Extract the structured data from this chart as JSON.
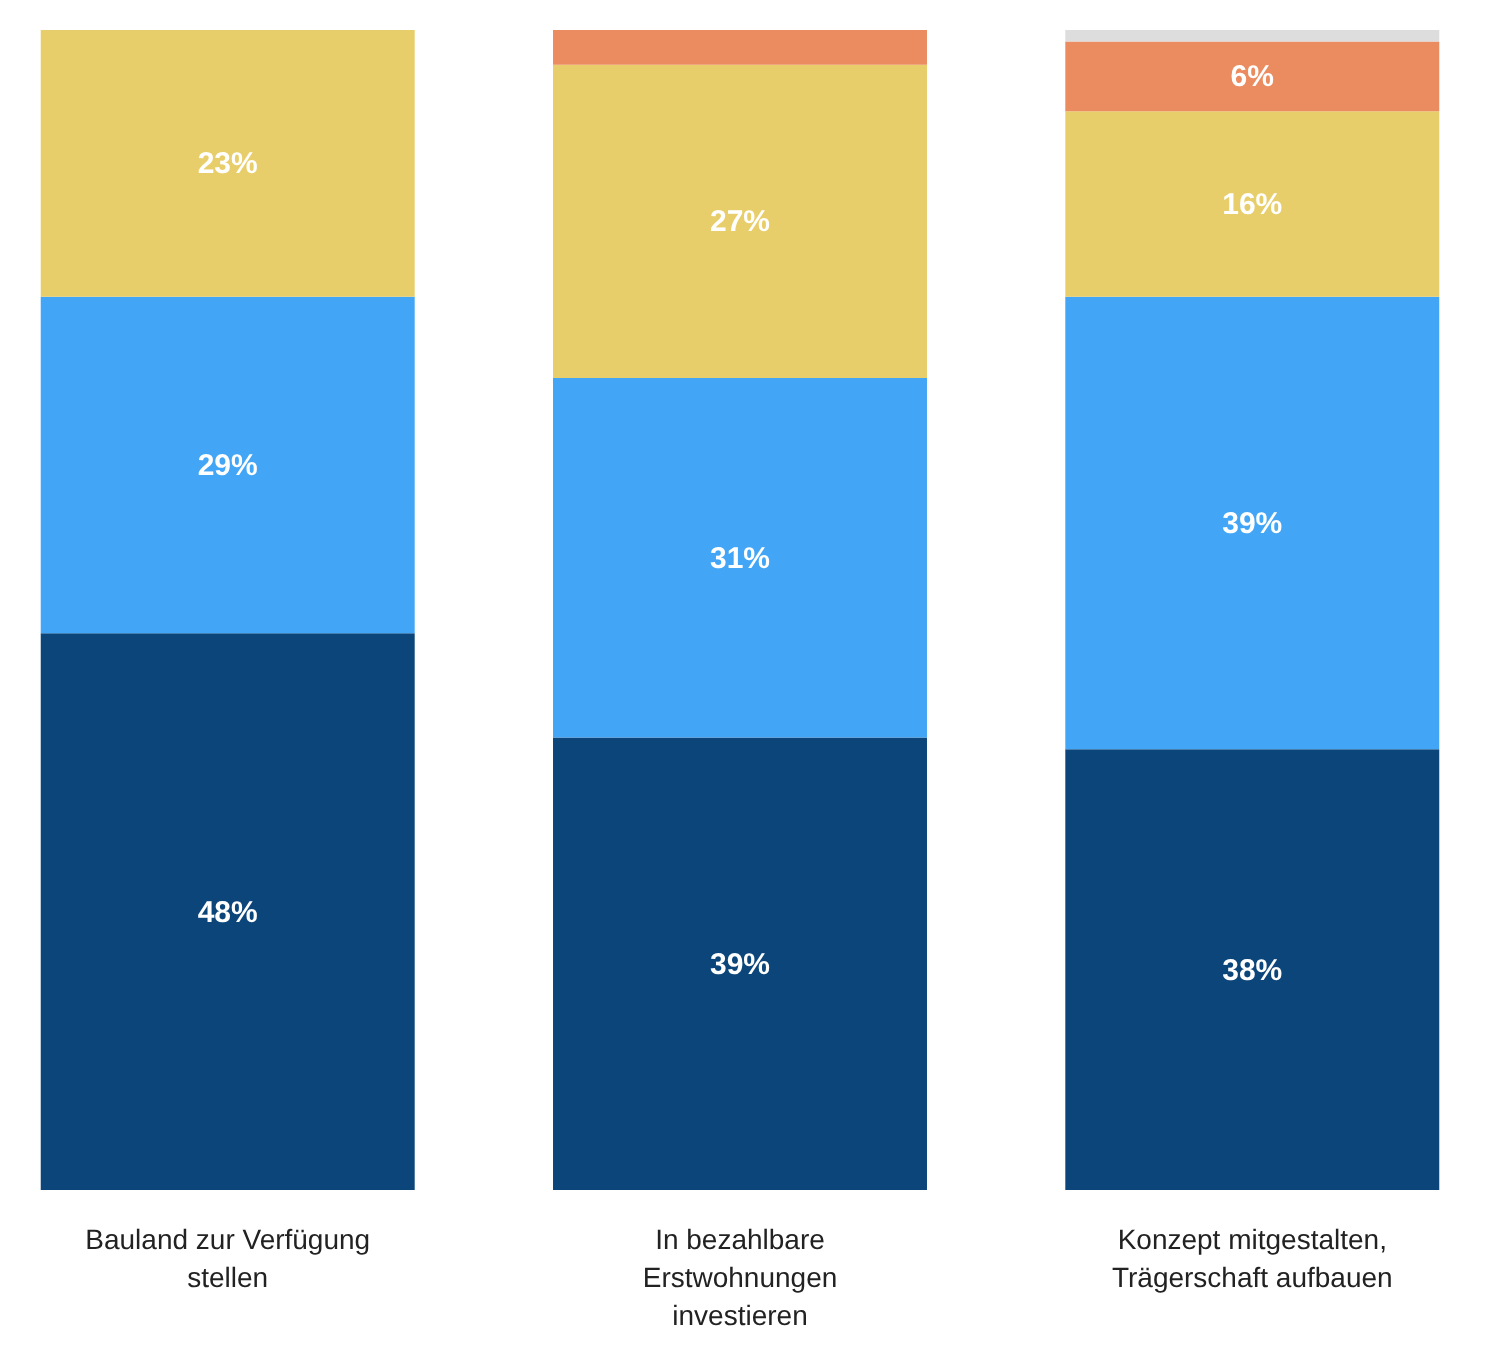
{
  "chart_data": {
    "type": "bar",
    "stacked": true,
    "categories": [
      "Bauland zur Verfügung stellen",
      "In bezahlbare Erstwohnungen investieren",
      "Konzept mitgestalten, Trägerschaft aufbauen"
    ],
    "ylim": [
      0,
      100
    ],
    "grid": false,
    "tick_labels": "x",
    "series": [
      {
        "color": "#0b457a",
        "values": [
          48,
          39,
          38
        ],
        "value_labels": [
          "48%",
          "39%",
          "38%"
        ]
      },
      {
        "color": "#42a5f5",
        "values": [
          29,
          31,
          39
        ],
        "value_labels": [
          "29%",
          "31%",
          "39%"
        ]
      },
      {
        "color": "#e8ce6a",
        "values": [
          23,
          27,
          16
        ],
        "value_labels": [
          "23%",
          "27%",
          "16%"
        ]
      },
      {
        "color": "#eb8c60",
        "values": [
          0,
          3,
          6
        ],
        "value_labels": [
          null,
          null,
          "6%"
        ]
      },
      {
        "color": "#dddddd",
        "values": [
          0,
          0,
          1
        ],
        "value_labels": [
          null,
          null,
          null
        ]
      }
    ]
  }
}
